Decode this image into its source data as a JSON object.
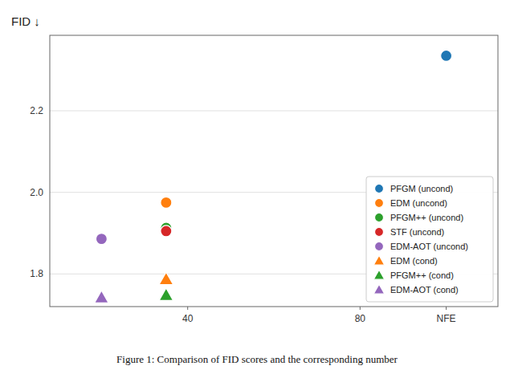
{
  "chart_data": {
    "type": "scatter",
    "y_label": "FID ↓",
    "caption": "Figure 1: Comparison of FID scores and the corresponding number",
    "xlim": [
      8,
      112
    ],
    "xticks": [
      40,
      80,
      {
        "value": 100,
        "label": "NFE"
      }
    ],
    "ylim": [
      1.72,
      2.385
    ],
    "yticks": [
      1.8,
      {
        "value": 2.0,
        "label": "2.0"
      },
      2.2
    ],
    "grid": "y",
    "legend": "lower right",
    "series": [
      {
        "name": "PFGM (uncond)",
        "color": "#1f77b4",
        "marker": "circle",
        "x": [
          100
        ],
        "values": [
          2.335
        ]
      },
      {
        "name": "EDM (uncond)",
        "color": "#ff7f0e",
        "marker": "circle",
        "x": [
          35
        ],
        "values": [
          1.975
        ]
      },
      {
        "name": "PFGM++ (uncond)",
        "color": "#2ca02c",
        "marker": "circle",
        "x": [
          35
        ],
        "values": [
          1.913
        ]
      },
      {
        "name": "STF (uncond)",
        "color": "#d62728",
        "marker": "circle",
        "x": [
          35
        ],
        "values": [
          1.905
        ]
      },
      {
        "name": "EDM-AOT (uncond)",
        "color": "#9467bd",
        "marker": "circle",
        "x": [
          20
        ],
        "values": [
          1.886
        ]
      },
      {
        "name": "EDM (cond)",
        "color": "#ff7f0e",
        "marker": "triangle",
        "x": [
          35
        ],
        "values": [
          1.787
        ]
      },
      {
        "name": "PFGM++ (cond)",
        "color": "#2ca02c",
        "marker": "triangle",
        "x": [
          35
        ],
        "values": [
          1.748
        ]
      },
      {
        "name": "EDM-AOT (cond)",
        "color": "#9467bd",
        "marker": "triangle",
        "x": [
          20
        ],
        "values": [
          1.742
        ]
      }
    ]
  }
}
